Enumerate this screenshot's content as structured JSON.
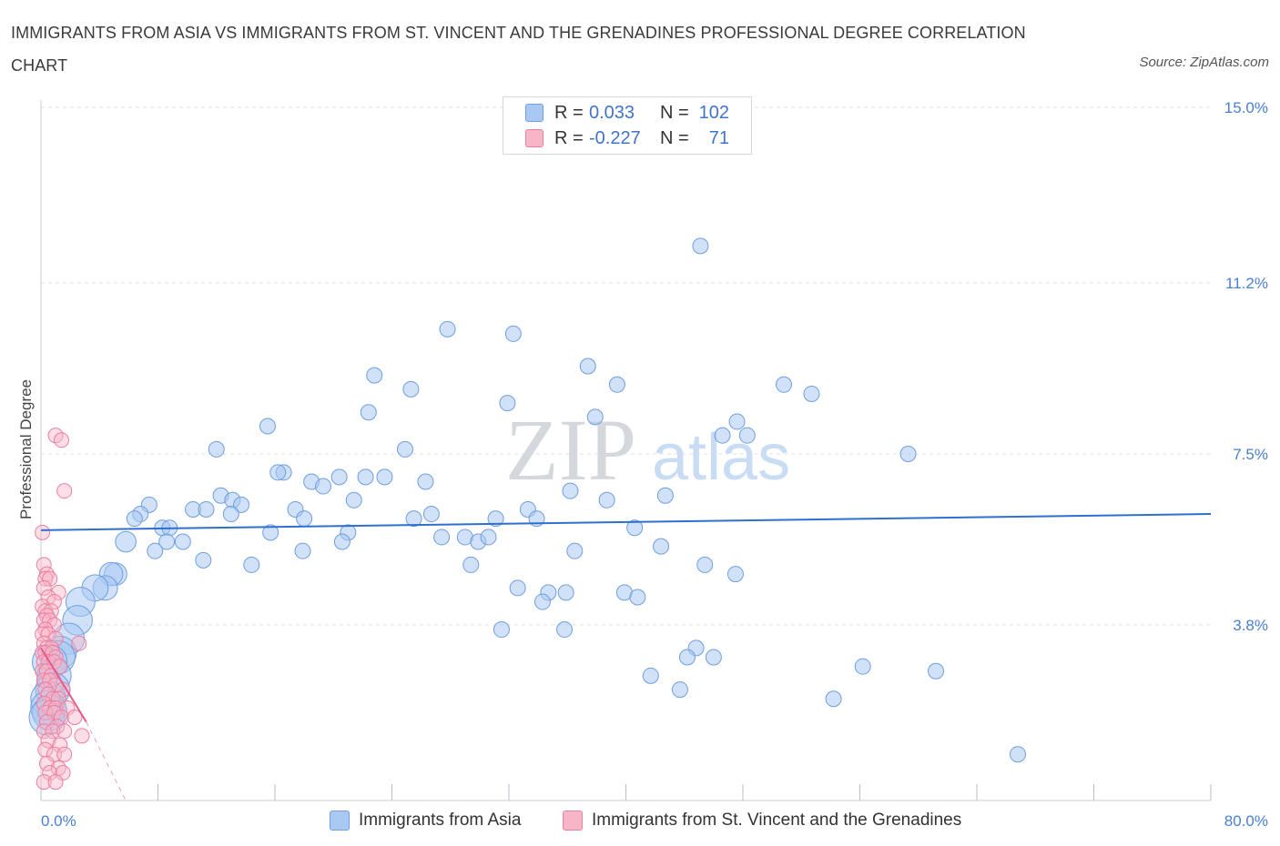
{
  "title": "IMMIGRANTS FROM ASIA VS IMMIGRANTS FROM ST. VINCENT AND THE GRENADINES PROFESSIONAL DEGREE CORRELATION CHART",
  "source": "Source: ZipAtlas.com",
  "watermark": {
    "zip": "ZIP",
    "atlas": "atlas"
  },
  "colors": {
    "blue_fill": "#a9c8f2",
    "blue_stroke": "#6f9fe0",
    "blue_line": "#2e6fcf",
    "pink_fill": "#f7b6c8",
    "pink_stroke": "#ec7fa0",
    "pink_line": "#e75a8a",
    "grid": "#dde1e7",
    "axis_text": "#4a7fd0"
  },
  "legend": {
    "rows": [
      {
        "r_label": "R =",
        "r_value": "0.033",
        "n_label": "N =",
        "n_value": "102",
        "series": "asia"
      },
      {
        "r_label": "R =",
        "r_value": "-0.227",
        "n_label": "N =",
        "n_value": "71",
        "series": "svg"
      }
    ]
  },
  "bottom_legend": {
    "asia": "Immigrants from Asia",
    "svg": "Immigrants from St. Vincent and the Grenadines"
  },
  "chart_data": {
    "type": "scatter",
    "title": "IMMIGRANTS FROM ASIA VS IMMIGRANTS FROM ST. VINCENT AND THE GRENADINES PROFESSIONAL DEGREE CORRELATION CHART",
    "xlabel": "",
    "ylabel": "Professional Degree",
    "xlim": [
      0,
      80
    ],
    "ylim": [
      0,
      15
    ],
    "x_tick_labels": [
      "0.0%",
      "80.0%"
    ],
    "y_ticks": [
      3.8,
      7.5,
      11.2,
      15.0
    ],
    "y_tick_labels": [
      "3.8%",
      "7.5%",
      "11.2%",
      "15.0%"
    ],
    "grid": true,
    "series": [
      {
        "name": "Immigrants from Asia",
        "key": "asia",
        "points": [
          [
            45.1,
            12.0
          ],
          [
            27.8,
            10.2
          ],
          [
            32.3,
            10.1
          ],
          [
            37.4,
            9.4
          ],
          [
            22.8,
            9.2
          ],
          [
            25.3,
            8.9
          ],
          [
            39.4,
            9.0
          ],
          [
            50.8,
            9.0
          ],
          [
            52.7,
            8.8
          ],
          [
            31.9,
            8.6
          ],
          [
            22.4,
            8.4
          ],
          [
            37.9,
            8.3
          ],
          [
            15.5,
            8.1
          ],
          [
            47.6,
            8.2
          ],
          [
            46.6,
            7.9
          ],
          [
            48.3,
            7.9
          ],
          [
            24.9,
            7.6
          ],
          [
            12.0,
            7.6
          ],
          [
            59.3,
            7.5
          ],
          [
            16.6,
            7.1
          ],
          [
            16.2,
            7.1
          ],
          [
            20.4,
            7.0
          ],
          [
            22.2,
            7.0
          ],
          [
            23.5,
            7.0
          ],
          [
            18.5,
            6.9
          ],
          [
            19.3,
            6.8
          ],
          [
            26.3,
            6.9
          ],
          [
            36.2,
            6.7
          ],
          [
            12.3,
            6.6
          ],
          [
            42.7,
            6.6
          ],
          [
            21.4,
            6.5
          ],
          [
            38.7,
            6.5
          ],
          [
            13.1,
            6.5
          ],
          [
            13.7,
            6.4
          ],
          [
            7.4,
            6.4
          ],
          [
            10.4,
            6.3
          ],
          [
            17.4,
            6.3
          ],
          [
            11.3,
            6.3
          ],
          [
            26.7,
            6.2
          ],
          [
            13.0,
            6.2
          ],
          [
            33.3,
            6.3
          ],
          [
            31.1,
            6.1
          ],
          [
            6.8,
            6.2
          ],
          [
            6.4,
            6.1
          ],
          [
            18.0,
            6.1
          ],
          [
            25.5,
            6.1
          ],
          [
            33.9,
            6.1
          ],
          [
            40.6,
            5.9
          ],
          [
            8.3,
            5.9
          ],
          [
            15.7,
            5.8
          ],
          [
            8.8,
            5.9
          ],
          [
            21.0,
            5.8
          ],
          [
            27.4,
            5.7
          ],
          [
            29.0,
            5.7
          ],
          [
            29.9,
            5.6
          ],
          [
            30.6,
            5.7
          ],
          [
            8.6,
            5.6
          ],
          [
            9.7,
            5.6
          ],
          [
            20.6,
            5.6
          ],
          [
            5.8,
            5.6
          ],
          [
            7.8,
            5.4
          ],
          [
            17.9,
            5.4
          ],
          [
            36.5,
            5.4
          ],
          [
            42.4,
            5.5
          ],
          [
            29.4,
            5.1
          ],
          [
            11.1,
            5.2
          ],
          [
            14.4,
            5.1
          ],
          [
            45.4,
            5.1
          ],
          [
            47.5,
            4.9
          ],
          [
            5.1,
            4.9
          ],
          [
            4.8,
            4.9
          ],
          [
            4.4,
            4.6
          ],
          [
            3.7,
            4.6
          ],
          [
            32.6,
            4.6
          ],
          [
            34.7,
            4.5
          ],
          [
            35.9,
            4.5
          ],
          [
            39.9,
            4.5
          ],
          [
            40.8,
            4.4
          ],
          [
            34.3,
            4.3
          ],
          [
            2.7,
            4.3
          ],
          [
            2.5,
            3.9
          ],
          [
            31.5,
            3.7
          ],
          [
            35.8,
            3.7
          ],
          [
            1.9,
            3.5
          ],
          [
            44.8,
            3.3
          ],
          [
            1.3,
            3.2
          ],
          [
            46.0,
            3.1
          ],
          [
            44.2,
            3.1
          ],
          [
            1.2,
            3.1
          ],
          [
            0.6,
            3.0
          ],
          [
            56.2,
            2.9
          ],
          [
            61.2,
            2.8
          ],
          [
            0.9,
            2.7
          ],
          [
            41.7,
            2.7
          ],
          [
            43.7,
            2.4
          ],
          [
            0.8,
            2.4
          ],
          [
            0.5,
            2.2
          ],
          [
            54.2,
            2.2
          ],
          [
            0.5,
            2.0
          ],
          [
            0.6,
            1.9
          ],
          [
            0.4,
            1.8
          ],
          [
            66.8,
            1.0
          ]
        ],
        "trend": {
          "x": [
            0,
            80
          ],
          "y": [
            5.85,
            6.2
          ]
        }
      },
      {
        "name": "Immigrants from St. Vincent and the Grenadines",
        "key": "svg",
        "points": [
          [
            1.0,
            7.9
          ],
          [
            1.4,
            7.8
          ],
          [
            1.6,
            6.7
          ],
          [
            0.1,
            5.8
          ],
          [
            0.2,
            5.1
          ],
          [
            0.4,
            4.9
          ],
          [
            0.3,
            4.8
          ],
          [
            0.6,
            4.8
          ],
          [
            0.2,
            4.6
          ],
          [
            1.2,
            4.5
          ],
          [
            0.5,
            4.4
          ],
          [
            0.9,
            4.3
          ],
          [
            0.1,
            4.2
          ],
          [
            0.3,
            4.1
          ],
          [
            0.7,
            4.1
          ],
          [
            0.4,
            4.0
          ],
          [
            0.2,
            3.9
          ],
          [
            0.6,
            3.9
          ],
          [
            0.9,
            3.8
          ],
          [
            0.3,
            3.7
          ],
          [
            0.1,
            3.6
          ],
          [
            0.5,
            3.6
          ],
          [
            1.0,
            3.5
          ],
          [
            0.2,
            3.4
          ],
          [
            0.4,
            3.3
          ],
          [
            0.7,
            3.3
          ],
          [
            2.6,
            3.4
          ],
          [
            0.1,
            3.2
          ],
          [
            0.3,
            3.2
          ],
          [
            0.8,
            3.2
          ],
          [
            1.0,
            3.1
          ],
          [
            0.2,
            3.0
          ],
          [
            0.5,
            3.0
          ],
          [
            0.9,
            3.0
          ],
          [
            1.3,
            2.9
          ],
          [
            0.1,
            2.8
          ],
          [
            0.4,
            2.8
          ],
          [
            0.7,
            2.7
          ],
          [
            0.2,
            2.6
          ],
          [
            0.6,
            2.6
          ],
          [
            1.0,
            2.5
          ],
          [
            0.3,
            2.4
          ],
          [
            1.5,
            2.4
          ],
          [
            0.5,
            2.3
          ],
          [
            0.8,
            2.2
          ],
          [
            1.2,
            2.2
          ],
          [
            0.2,
            2.1
          ],
          [
            0.6,
            2.0
          ],
          [
            1.0,
            2.0
          ],
          [
            1.8,
            2.0
          ],
          [
            0.3,
            1.9
          ],
          [
            0.9,
            1.9
          ],
          [
            1.4,
            1.8
          ],
          [
            2.3,
            1.8
          ],
          [
            0.4,
            1.7
          ],
          [
            1.1,
            1.6
          ],
          [
            0.2,
            1.5
          ],
          [
            0.8,
            1.5
          ],
          [
            1.6,
            1.5
          ],
          [
            2.8,
            1.4
          ],
          [
            0.5,
            1.3
          ],
          [
            1.3,
            1.2
          ],
          [
            0.3,
            1.1
          ],
          [
            0.9,
            1.0
          ],
          [
            1.6,
            1.0
          ],
          [
            0.4,
            0.8
          ],
          [
            1.2,
            0.7
          ],
          [
            0.6,
            0.6
          ],
          [
            1.5,
            0.6
          ],
          [
            0.2,
            0.4
          ],
          [
            1.0,
            0.4
          ]
        ],
        "trend_solid": {
          "x": [
            0,
            3.1
          ],
          "y": [
            3.3,
            1.7
          ]
        },
        "trend_dashed": {
          "x": [
            3.1,
            5.8
          ],
          "y": [
            1.7,
            0.0
          ]
        }
      }
    ]
  }
}
